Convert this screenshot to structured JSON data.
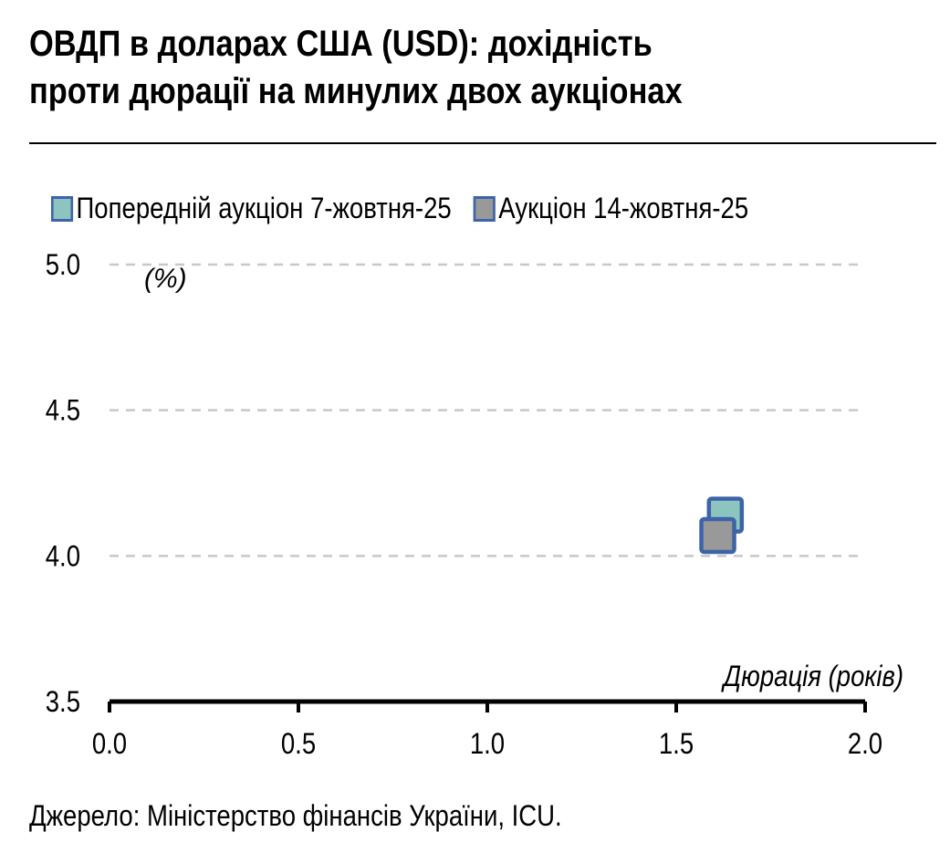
{
  "header": {
    "title_line1": "ОВДП в доларах США (USD): дохідність",
    "title_line2": "проти дюрації на минулих двох аукціонах"
  },
  "source": "Джерело: Міністерство фінансів України, ICU.",
  "chart_data": {
    "type": "scatter",
    "title": "ОВДП в доларах США (USD): дохідність проти дюрації на минулих двох аукціонах",
    "xlabel": "Дюрація (років)",
    "ylabel": "(%)",
    "xlim": [
      0,
      2
    ],
    "ylim": [
      3.5,
      5
    ],
    "xticks": [
      "0.0",
      "0.5",
      "1.0",
      "1.5",
      "2.0"
    ],
    "yticks": [
      "3.5",
      "4.0",
      "4.5",
      "5.0"
    ],
    "grid": "horizontal dashed",
    "legend_position": "top",
    "series": [
      {
        "name": "Попередній аукціон 7-жовтня-25",
        "color": "#8cc5bf",
        "border": "#3d63a8",
        "points": [
          {
            "x": 1.63,
            "y": 4.14
          }
        ]
      },
      {
        "name": "Аукціон 14-жовтня-25",
        "color": "#999999",
        "border": "#3d63a8",
        "points": [
          {
            "x": 1.61,
            "y": 4.07
          }
        ]
      }
    ]
  }
}
